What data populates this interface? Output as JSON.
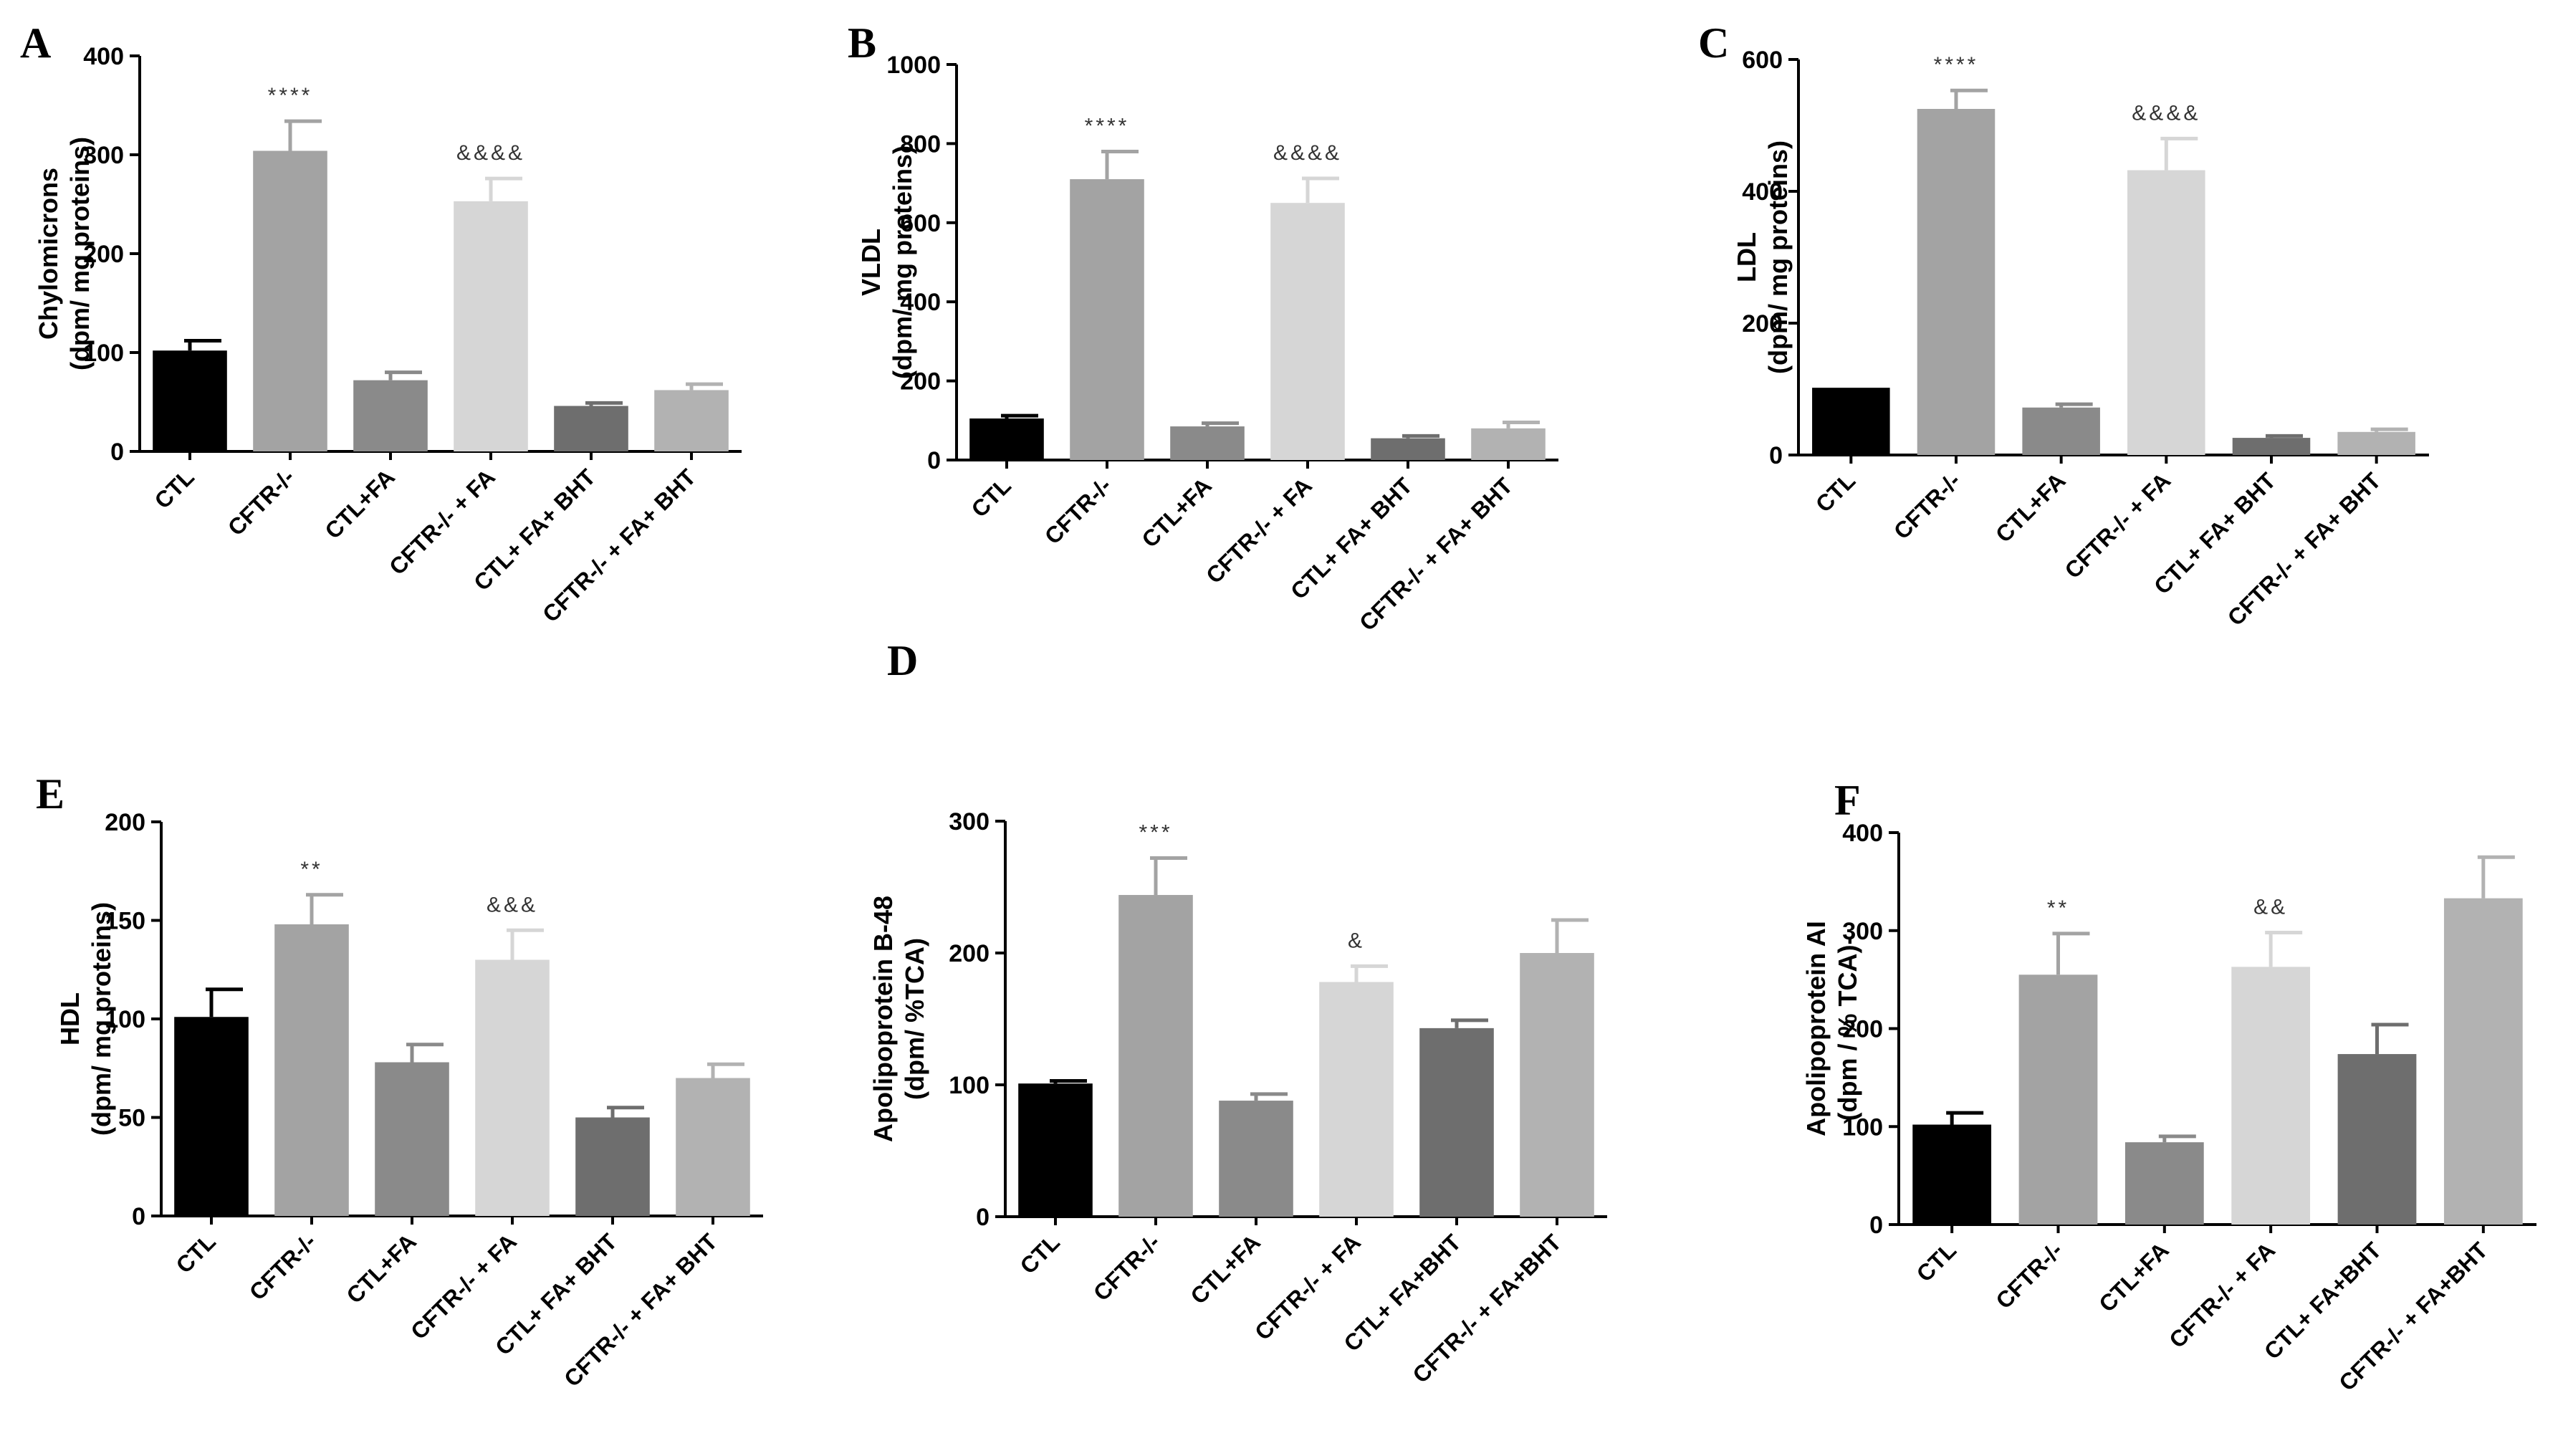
{
  "chart_data": [
    {
      "panel": "A",
      "type": "bar",
      "categories": [
        "CTL",
        "CFTR-/-",
        "CTL+FA",
        "CFTR-/- + FA",
        "CTL+ FA+ BHT",
        "CFTR-/- + FA+ BHT"
      ],
      "values": [
        102,
        304,
        72,
        253,
        46,
        62
      ],
      "errors": [
        10,
        30,
        8,
        23,
        3,
        6
      ],
      "annotations": [
        "",
        "****",
        "",
        "&&&&",
        "",
        ""
      ],
      "ylabel_lines": [
        "Chylomicrons",
        "(dpm/ mg proteins)"
      ],
      "ylim": [
        0,
        400
      ],
      "yticks": [
        0,
        100,
        200,
        300,
        400
      ],
      "colors": [
        "#000000",
        "#a3a3a3",
        "#8a8a8a",
        "#d6d6d6",
        "#6e6e6e",
        "#b2b2b2"
      ]
    },
    {
      "panel": "B",
      "type": "bar",
      "categories": [
        "CTL",
        "CFTR-/-",
        "CTL+FA",
        "CFTR-/- + FA",
        "CTL+ FA+ BHT",
        "CFTR-/- + FA+ BHT"
      ],
      "values": [
        105,
        710,
        85,
        650,
        55,
        80
      ],
      "errors": [
        7,
        70,
        8,
        62,
        6,
        15
      ],
      "annotations": [
        "",
        "****",
        "",
        "&&&&",
        "",
        ""
      ],
      "ylabel_lines": [
        "VLDL",
        "(dpm/ mg proteins)"
      ],
      "ylim": [
        0,
        1000
      ],
      "yticks": [
        0,
        200,
        400,
        600,
        800,
        1000
      ],
      "colors": [
        "#000000",
        "#a3a3a3",
        "#8a8a8a",
        "#d6d6d6",
        "#6e6e6e",
        "#b2b2b2"
      ]
    },
    {
      "panel": "C",
      "type": "bar",
      "categories": [
        "CTL",
        "CFTR-/-",
        "CTL+FA",
        "CFTR-/- + FA",
        "CTL+ FA+ BHT",
        "CFTR-/- + FA+ BHT"
      ],
      "values": [
        102,
        525,
        72,
        432,
        26,
        35
      ],
      "errors": [
        0,
        28,
        5,
        48,
        3,
        4
      ],
      "annotations": [
        "",
        "****",
        "",
        "&&&&",
        "",
        ""
      ],
      "ylabel_lines": [
        "LDL",
        "(dpm/ mg proteins)"
      ],
      "ylim": [
        0,
        600
      ],
      "yticks": [
        0,
        200,
        400,
        600
      ],
      "colors": [
        "#000000",
        "#a3a3a3",
        "#8a8a8a",
        "#d6d6d6",
        "#6e6e6e",
        "#b2b2b2"
      ]
    },
    {
      "panel": "E",
      "type": "bar",
      "categories": [
        "CTL",
        "CFTR-/-",
        "CTL+FA",
        "CFTR-/- + FA",
        "CTL+ FA+ BHT",
        "CFTR-/- + FA+ BHT"
      ],
      "values": [
        101,
        148,
        78,
        130,
        50,
        70
      ],
      "errors": [
        14,
        15,
        9,
        15,
        5,
        7
      ],
      "annotations": [
        "",
        "**",
        "",
        "&&&",
        "",
        ""
      ],
      "ylabel_lines": [
        "HDL",
        "(dpm/ mg proteins)"
      ],
      "ylim": [
        0,
        200
      ],
      "yticks": [
        0,
        50,
        100,
        150,
        200
      ],
      "colors": [
        "#000000",
        "#a3a3a3",
        "#8a8a8a",
        "#d6d6d6",
        "#6e6e6e",
        "#b2b2b2"
      ]
    },
    {
      "panel": "D",
      "type": "bar",
      "categories": [
        "CTL",
        "CFTR-/-",
        "CTL+FA",
        "CFTR-/- + FA",
        "CTL+ FA+BHT",
        "CFTR-/- + FA+BHT"
      ],
      "values": [
        101,
        244,
        88,
        178,
        143,
        200
      ],
      "errors": [
        2,
        28,
        5,
        12,
        6,
        25
      ],
      "annotations": [
        "",
        "***",
        "",
        "&",
        "",
        ""
      ],
      "ylabel_lines": [
        "Apolipoprotein B-48",
        "(dpm/ %TCA)"
      ],
      "ylim": [
        0,
        300
      ],
      "yticks": [
        0,
        100,
        200,
        300
      ],
      "colors": [
        "#000000",
        "#a3a3a3",
        "#8a8a8a",
        "#d6d6d6",
        "#6e6e6e",
        "#b2b2b2"
      ]
    },
    {
      "panel": "F",
      "type": "bar",
      "categories": [
        "CTL",
        "CFTR-/-",
        "CTL+FA",
        "CFTR-/- + FA",
        "CTL+ FA+BHT",
        "CFTR-/- + FA+BHT"
      ],
      "values": [
        102,
        255,
        84,
        263,
        174,
        333
      ],
      "errors": [
        12,
        42,
        6,
        35,
        30,
        42
      ],
      "annotations": [
        "",
        "**",
        "",
        "&&",
        "",
        ""
      ],
      "ylabel_lines": [
        "Apolipoprotein AI",
        "(dpm / % TCA)-"
      ],
      "ylim": [
        0,
        400
      ],
      "yticks": [
        0,
        100,
        200,
        300,
        400
      ],
      "colors": [
        "#000000",
        "#a3a3a3",
        "#8a8a8a",
        "#d6d6d6",
        "#6e6e6e",
        "#b2b2b2"
      ]
    }
  ]
}
